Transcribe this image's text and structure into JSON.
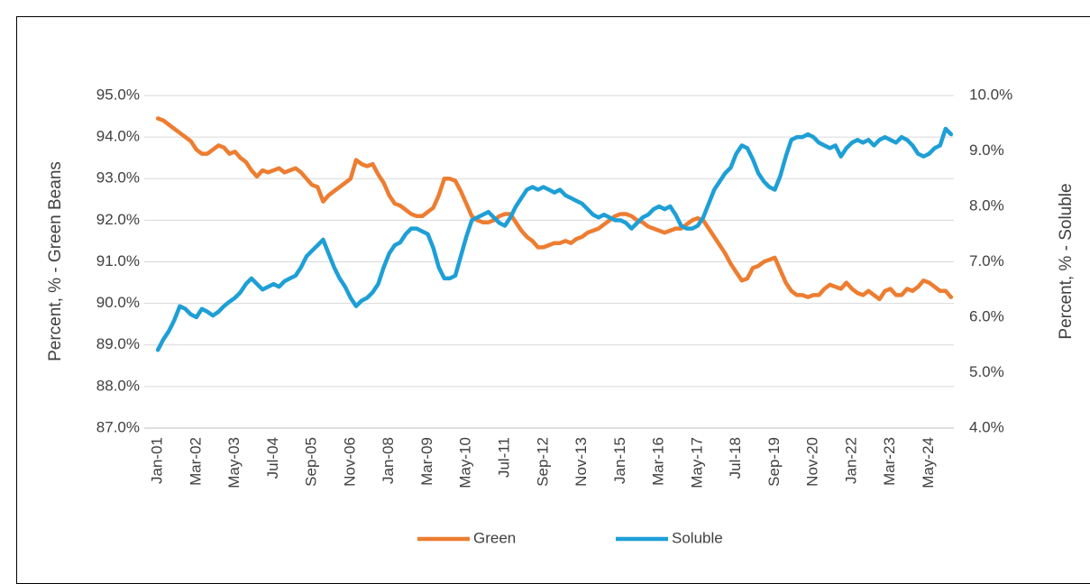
{
  "chart_data": {
    "type": "line",
    "y_label": "Percent, % - Green Beans",
    "y2_label": "Percent, % - Soluble",
    "categories": [
      "Jan-01",
      null,
      null,
      null,
      null,
      null,
      null,
      "Mar-02",
      null,
      null,
      null,
      null,
      null,
      null,
      "May-03",
      null,
      null,
      null,
      null,
      null,
      null,
      "Jul-04",
      null,
      null,
      null,
      null,
      null,
      null,
      "Sep-05",
      null,
      null,
      null,
      null,
      null,
      null,
      "Nov-06",
      null,
      null,
      null,
      null,
      null,
      null,
      "Jan-08",
      null,
      null,
      null,
      null,
      null,
      null,
      "Mar-09",
      null,
      null,
      null,
      null,
      null,
      null,
      "May-10",
      null,
      null,
      null,
      null,
      null,
      null,
      "Jul-11",
      null,
      null,
      null,
      null,
      null,
      null,
      "Sep-12",
      null,
      null,
      null,
      null,
      null,
      null,
      "Nov-13",
      null,
      null,
      null,
      null,
      null,
      null,
      "Jan-15",
      null,
      null,
      null,
      null,
      null,
      null,
      "Mar-16",
      null,
      null,
      null,
      null,
      null,
      null,
      "May-17",
      null,
      null,
      null,
      null,
      null,
      null,
      "Jul-18",
      null,
      null,
      null,
      null,
      null,
      null,
      "Sep-19",
      null,
      null,
      null,
      null,
      null,
      null,
      "Nov-20",
      null,
      null,
      null,
      null,
      null,
      null,
      "Jan-22",
      null,
      null,
      null,
      null,
      null,
      null,
      "Mar-23",
      null,
      null,
      null,
      null,
      null,
      null,
      "May-24",
      null,
      null,
      null,
      null
    ],
    "series": [
      {
        "name": "Green",
        "color": "#ed7d31",
        "values": [
          94.45,
          94.4,
          94.3,
          94.2,
          94.1,
          94.0,
          93.9,
          93.7,
          93.6,
          93.6,
          93.7,
          93.8,
          93.75,
          93.6,
          93.65,
          93.5,
          93.4,
          93.2,
          93.05,
          93.2,
          93.15,
          93.2,
          93.25,
          93.15,
          93.2,
          93.25,
          93.15,
          93.0,
          92.85,
          92.8,
          92.45,
          92.6,
          92.7,
          92.8,
          92.9,
          93.0,
          93.45,
          93.35,
          93.3,
          93.35,
          93.1,
          92.9,
          92.6,
          92.4,
          92.35,
          92.25,
          92.15,
          92.1,
          92.1,
          92.2,
          92.3,
          92.6,
          93.0,
          93.0,
          92.95,
          92.7,
          92.4,
          92.1,
          92.0,
          91.95,
          91.95,
          92.0,
          92.1,
          92.15,
          92.15,
          91.95,
          91.75,
          91.6,
          91.5,
          91.35,
          91.35,
          91.4,
          91.45,
          91.45,
          91.5,
          91.45,
          91.55,
          91.6,
          91.7,
          91.75,
          91.8,
          91.9,
          92.0,
          92.1,
          92.15,
          92.15,
          92.1,
          92.0,
          91.95,
          91.85,
          91.8,
          91.75,
          91.7,
          91.75,
          91.8,
          91.8,
          91.9,
          92.0,
          92.05,
          92.0,
          91.8,
          91.6,
          91.4,
          91.2,
          90.95,
          90.75,
          90.55,
          90.6,
          90.85,
          90.9,
          91.0,
          91.05,
          91.1,
          90.8,
          90.5,
          90.3,
          90.2,
          90.2,
          90.15,
          90.2,
          90.2,
          90.35,
          90.45,
          90.4,
          90.35,
          90.5,
          90.35,
          90.25,
          90.2,
          90.3,
          90.2,
          90.1,
          90.3,
          90.35,
          90.2,
          90.2,
          90.35,
          90.3,
          90.4,
          90.55,
          90.5,
          90.4,
          90.3,
          90.3,
          90.15
        ]
      },
      {
        "name": "Soluble",
        "color": "#1e9fd6",
        "axis": "y2",
        "values": [
          5.41,
          5.6,
          5.75,
          5.95,
          6.2,
          6.15,
          6.05,
          6.0,
          6.15,
          6.1,
          6.03,
          6.1,
          6.2,
          6.28,
          6.35,
          6.45,
          6.6,
          6.7,
          6.6,
          6.5,
          6.55,
          6.6,
          6.55,
          6.65,
          6.7,
          6.75,
          6.9,
          7.1,
          7.2,
          7.3,
          7.4,
          7.15,
          6.9,
          6.7,
          6.55,
          6.35,
          6.2,
          6.3,
          6.35,
          6.45,
          6.6,
          6.9,
          7.15,
          7.3,
          7.35,
          7.5,
          7.6,
          7.6,
          7.55,
          7.5,
          7.25,
          6.9,
          6.7,
          6.7,
          6.75,
          7.1,
          7.45,
          7.75,
          7.8,
          7.85,
          7.9,
          7.8,
          7.7,
          7.65,
          7.8,
          8.0,
          8.15,
          8.3,
          8.35,
          8.3,
          8.35,
          8.3,
          8.25,
          8.3,
          8.2,
          8.15,
          8.1,
          8.05,
          7.95,
          7.85,
          7.8,
          7.85,
          7.8,
          7.75,
          7.75,
          7.7,
          7.6,
          7.7,
          7.8,
          7.85,
          7.95,
          8.0,
          7.95,
          8.0,
          7.85,
          7.65,
          7.6,
          7.6,
          7.65,
          7.8,
          8.05,
          8.3,
          8.45,
          8.6,
          8.7,
          8.95,
          9.1,
          9.05,
          8.85,
          8.6,
          8.45,
          8.35,
          8.3,
          8.55,
          8.9,
          9.2,
          9.25,
          9.25,
          9.3,
          9.25,
          9.15,
          9.1,
          9.05,
          9.1,
          8.9,
          9.05,
          9.15,
          9.2,
          9.15,
          9.2,
          9.1,
          9.2,
          9.25,
          9.2,
          9.15,
          9.25,
          9.2,
          9.1,
          8.95,
          8.9,
          8.95,
          9.05,
          9.1,
          9.4,
          9.3
        ]
      }
    ],
    "ylim": [
      87,
      95
    ],
    "yticks": [
      {
        "value": 87,
        "label": "87.0%"
      },
      {
        "value": 88,
        "label": "88.0%"
      },
      {
        "value": 89,
        "label": "89.0%"
      },
      {
        "value": 90,
        "label": "90.0%"
      },
      {
        "value": 91,
        "label": "91.0%"
      },
      {
        "value": 92,
        "label": "92.0%"
      },
      {
        "value": 93,
        "label": "93.0%"
      },
      {
        "value": 94,
        "label": "94.0%"
      },
      {
        "value": 95,
        "label": "95.0%"
      }
    ],
    "y2lim": [
      4,
      10
    ],
    "y2ticks": [
      {
        "value": 4,
        "label": "4.0%"
      },
      {
        "value": 5,
        "label": "5.0%"
      },
      {
        "value": 6,
        "label": "6.0%"
      },
      {
        "value": 7,
        "label": "7.0%"
      },
      {
        "value": 8,
        "label": "8.0%"
      },
      {
        "value": 9,
        "label": "9.0%"
      },
      {
        "value": 10,
        "label": "10.0%"
      }
    ],
    "grid": true,
    "legend": "bottom"
  }
}
